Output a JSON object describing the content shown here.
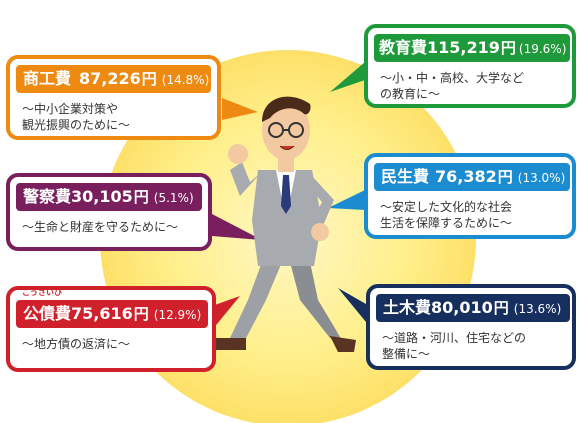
{
  "colors": {
    "commerce": "#ee8a12",
    "police": "#7a1f5e",
    "debt": "#d0202b",
    "education": "#1f9a3a",
    "welfare": "#1b8ccf",
    "civil": "#172f5e",
    "sun": "#fff08a"
  },
  "cards": {
    "commerce": {
      "name": "商工費",
      "amount": "87,226",
      "yen": "円",
      "pct": "(14.8%)",
      "desc": [
        "～中小企業対策や",
        "観光振興のために～"
      ]
    },
    "police": {
      "name": "警察費",
      "amount": "30,105",
      "yen": "円",
      "pct": "(5.1%)",
      "desc": [
        "～生命と財産を守るために～"
      ]
    },
    "debt": {
      "name": "公債費",
      "ruby": "こうさいひ",
      "amount": "75,616",
      "yen": "円",
      "pct": "(12.9%)",
      "desc": [
        "～地方債の返済に～"
      ]
    },
    "education": {
      "name": "教育費",
      "amount": "115,219",
      "yen": "円",
      "pct": "(19.6%)",
      "desc": [
        "～小・中・高校、大学など",
        "の教育に～"
      ]
    },
    "welfare": {
      "name": "民生費",
      "amount": "76,382",
      "yen": "円",
      "pct": "(13.0%)",
      "desc": [
        "～安定した文化的な社会",
        "生活を保障するために～"
      ]
    },
    "civil": {
      "name": "土木費",
      "amount": "80,010",
      "yen": "円",
      "pct": "(13.6%)",
      "desc": [
        "～道路・河川、住宅などの",
        "整備に～"
      ]
    }
  }
}
